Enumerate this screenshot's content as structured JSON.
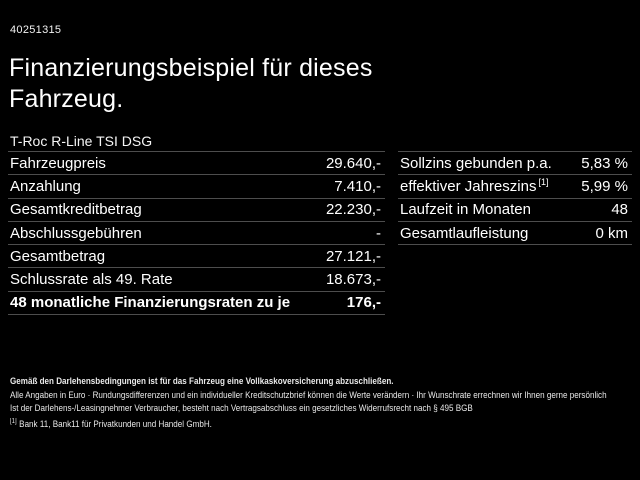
{
  "header": {
    "id_number": "40251315",
    "title_line1": "Finanzierungsbeispiel für dieses",
    "title_line2": "Fahrzeug.",
    "vehicle_name": "T-Roc R-Line TSI DSG"
  },
  "financing_table": {
    "rows": [
      {
        "label": "Fahrzeugpreis",
        "value": "29.640,-"
      },
      {
        "label": "Anzahlung",
        "value": "7.410,-"
      },
      {
        "label": "Gesamtkreditbetrag",
        "value": "22.230,-"
      },
      {
        "label": "Abschlussgebühren",
        "value": "-"
      },
      {
        "label": "Gesamtbetrag",
        "value": "27.121,-"
      },
      {
        "label": "Schlussrate als 49. Rate",
        "value": "18.673,-"
      },
      {
        "label": "48 monatliche Finanzierungsraten zu je",
        "value": "176,-"
      }
    ]
  },
  "conditions_table": {
    "rows": [
      {
        "label": "Sollzins gebunden p.a.",
        "value": "5,83 %"
      },
      {
        "label": "effektiver Jahreszins",
        "sup": "[1]",
        "value": "5,99 %"
      },
      {
        "label": "Laufzeit in Monaten",
        "value": "48"
      },
      {
        "label": "Gesamtlaufleistung",
        "value": "0 km"
      }
    ]
  },
  "footer": {
    "insurance_note": "Gemäß den Darlehensbedingungen ist für das Fahrzeug eine Vollkaskoversicherung abzuschließen.",
    "general_note": "Alle Angaben in Euro · Rundungsdifferenzen und ein individueller Kreditschutzbrief können die Werte verändern · Ihr Wunschrate errechnen wir Ihnen gerne persönlich",
    "withdrawal_note": "Ist der Darlehens-/Leasingnehmer Verbraucher, besteht nach Vertragsabschluss ein gesetzliches Widerrufsrecht nach § 495 BGB",
    "footnote_marker": "[1]",
    "footnote_text": "Bank 11, Bank11 für Privatkunden und Handel GmbH."
  },
  "colors": {
    "background": "#000000",
    "text": "#ffffff",
    "divider": "#4d4d4d"
  }
}
